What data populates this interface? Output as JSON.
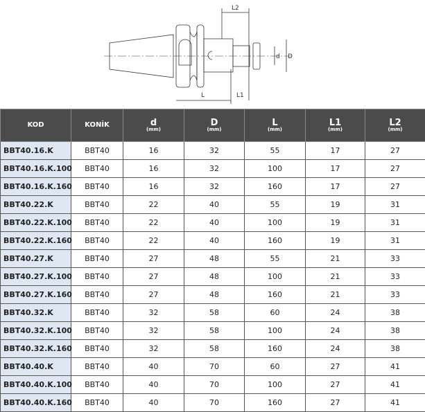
{
  "drawing": {
    "labels": {
      "L2": "L2",
      "L": "L",
      "L1": "L1",
      "d": "d",
      "D": "D"
    }
  },
  "table": {
    "headers": [
      {
        "label": "KOD",
        "unit": ""
      },
      {
        "label": "KONİK",
        "unit": ""
      },
      {
        "label": "d",
        "unit": "(mm)"
      },
      {
        "label": "D",
        "unit": "(mm)"
      },
      {
        "label": "L",
        "unit": "(mm)"
      },
      {
        "label": "L1",
        "unit": "(mm)"
      },
      {
        "label": "L2",
        "unit": "(mm)"
      }
    ],
    "rows": [
      [
        "BBT40.16.K",
        "BBT40",
        "16",
        "32",
        "55",
        "17",
        "27"
      ],
      [
        "BBT40.16.K.100",
        "BBT40",
        "16",
        "32",
        "100",
        "17",
        "27"
      ],
      [
        "BBT40.16.K.160",
        "BBT40",
        "16",
        "32",
        "160",
        "17",
        "27"
      ],
      [
        "BBT40.22.K",
        "BBT40",
        "22",
        "40",
        "55",
        "19",
        "31"
      ],
      [
        "BBT40.22.K.100",
        "BBT40",
        "22",
        "40",
        "100",
        "19",
        "31"
      ],
      [
        "BBT40.22.K.160",
        "BBT40",
        "22",
        "40",
        "160",
        "19",
        "31"
      ],
      [
        "BBT40.27.K",
        "BBT40",
        "27",
        "48",
        "55",
        "21",
        "33"
      ],
      [
        "BBT40.27.K.100",
        "BBT40",
        "27",
        "48",
        "100",
        "21",
        "33"
      ],
      [
        "BBT40.27.K.160",
        "BBT40",
        "27",
        "48",
        "160",
        "21",
        "33"
      ],
      [
        "BBT40.32.K",
        "BBT40",
        "32",
        "58",
        "60",
        "24",
        "38"
      ],
      [
        "BBT40.32.K.100",
        "BBT40",
        "32",
        "58",
        "100",
        "24",
        "38"
      ],
      [
        "BBT40.32.K.160",
        "BBT40",
        "32",
        "58",
        "160",
        "24",
        "38"
      ],
      [
        "BBT40.40.K",
        "BBT40",
        "40",
        "70",
        "60",
        "27",
        "41"
      ],
      [
        "BBT40.40.K.100",
        "BBT40",
        "40",
        "70",
        "100",
        "27",
        "41"
      ],
      [
        "BBT40.40.K.160",
        "BBT40",
        "40",
        "70",
        "160",
        "27",
        "41"
      ]
    ]
  }
}
